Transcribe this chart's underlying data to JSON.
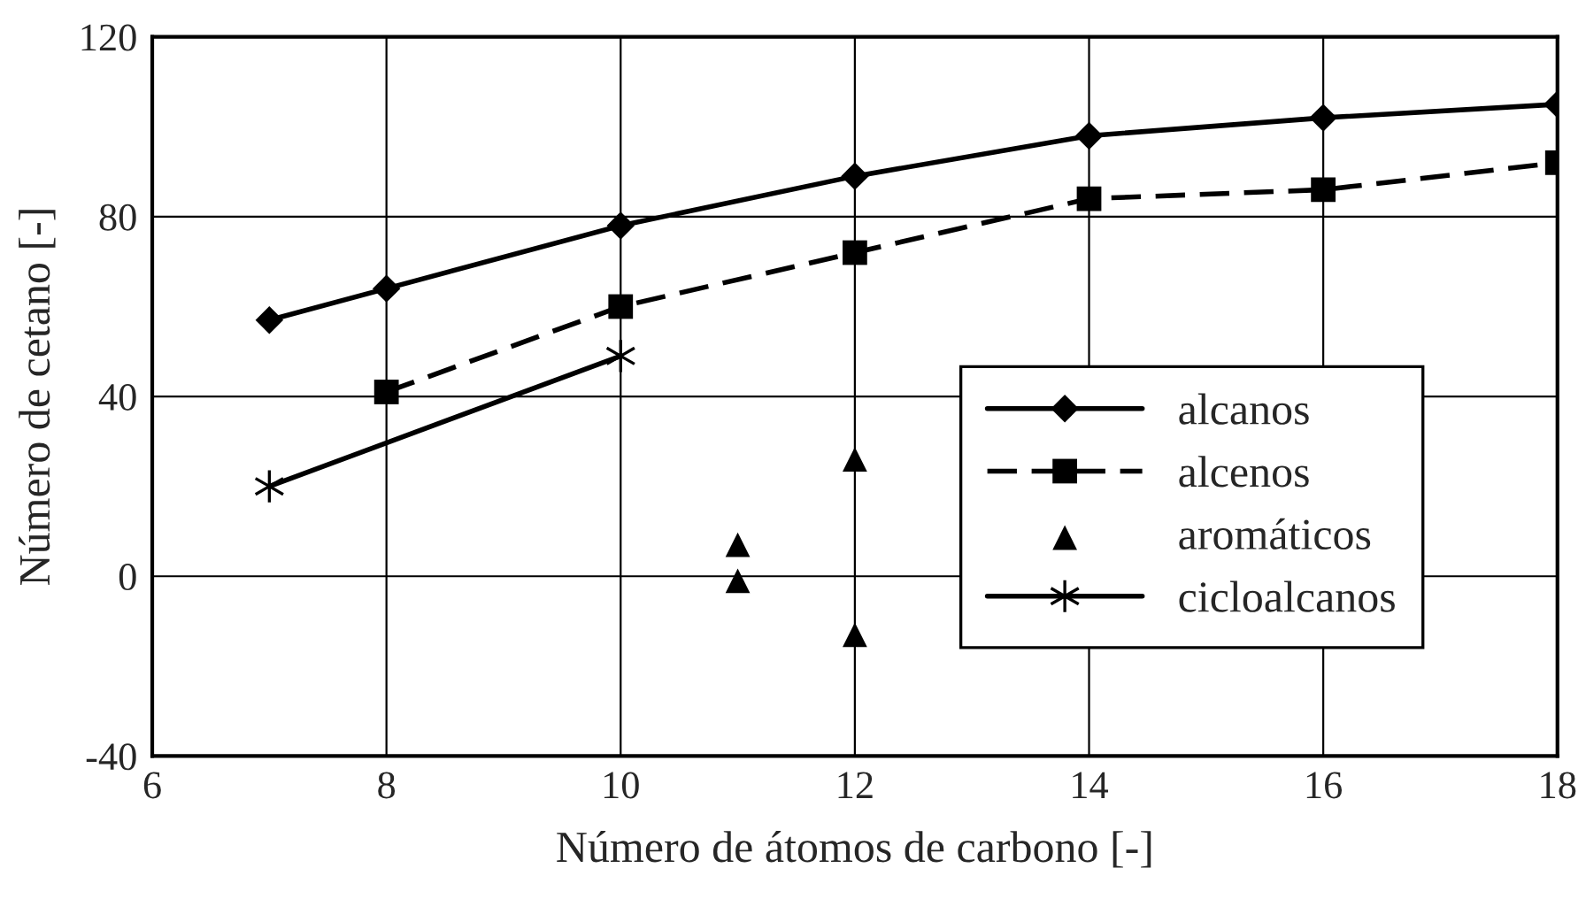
{
  "chart_data": {
    "type": "line",
    "xlabel": "Número de átomos de carbono [-]",
    "ylabel": "Número de cetano [-]",
    "xlim": [
      6,
      18
    ],
    "xticks": [
      6,
      8,
      10,
      12,
      14,
      16,
      18
    ],
    "ylim": [
      -40,
      120
    ],
    "yticks": [
      -40,
      0,
      40,
      80,
      120
    ],
    "grid": true,
    "legend": "lower right",
    "series": [
      {
        "name": "alcanos",
        "color": "#000000",
        "marker": "diamond",
        "line_style": "solid",
        "x": [
          7,
          8,
          10,
          12,
          14,
          16,
          18
        ],
        "values": [
          57,
          64,
          78,
          89,
          98,
          102,
          105
        ]
      },
      {
        "name": "alcenos",
        "color": "#000000",
        "marker": "square",
        "line_style": "dashed",
        "x": [
          8,
          10,
          12,
          14,
          16,
          18
        ],
        "values": [
          41,
          60,
          72,
          84,
          86,
          92
        ]
      },
      {
        "name": "aromáticos",
        "type": "scatter",
        "color": "#000000",
        "marker": "triangle",
        "x": [
          11,
          11,
          12,
          12
        ],
        "values": [
          7,
          -1,
          26,
          -13
        ]
      },
      {
        "name": "cicloalcanos",
        "color": "#000000",
        "marker": "cross",
        "line_style": "solid",
        "x": [
          7,
          10
        ],
        "values": [
          20,
          49
        ]
      }
    ]
  }
}
